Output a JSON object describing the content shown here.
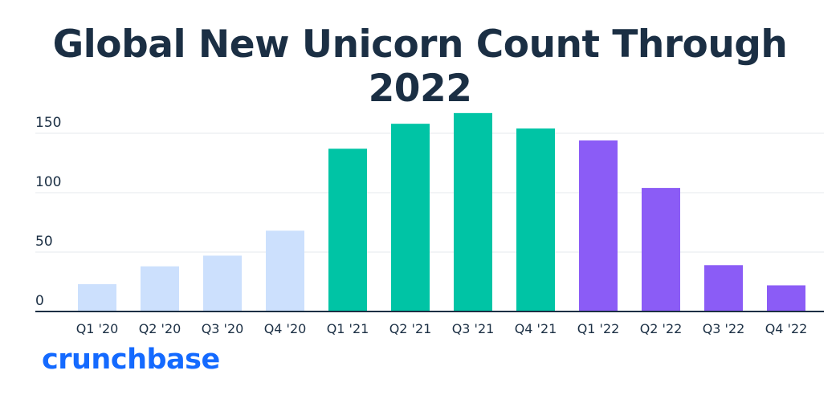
{
  "chart_data": {
    "type": "bar",
    "title": "Global New Unicorn Count Through 2022",
    "xlabel": "",
    "ylabel": "",
    "ylim": [
      0,
      175
    ],
    "yticks": [
      0,
      50,
      100,
      150
    ],
    "grid": true,
    "categories": [
      "Q1 '20",
      "Q2 '20",
      "Q3 '20",
      "Q4 '20",
      "Q1 '21",
      "Q2 '21",
      "Q3 '21",
      "Q4 '21",
      "Q1 '22",
      "Q2 '22",
      "Q3 '22",
      "Q4 '22"
    ],
    "values": [
      23,
      38,
      47,
      68,
      137,
      158,
      167,
      154,
      144,
      104,
      39,
      22
    ],
    "bar_colors": [
      "#cce0fd",
      "#cce0fd",
      "#cce0fd",
      "#cce0fd",
      "#00c4a5",
      "#00c4a5",
      "#00c4a5",
      "#00c4a5",
      "#8b5cf6",
      "#8b5cf6",
      "#8b5cf6",
      "#8b5cf6"
    ]
  },
  "brand": {
    "name": "crunchbase",
    "color": "#146aff"
  }
}
